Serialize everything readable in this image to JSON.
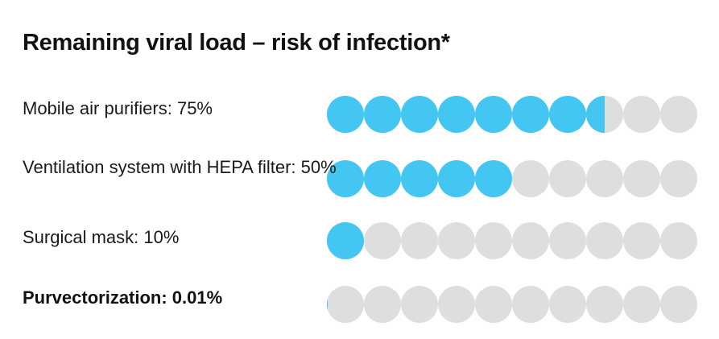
{
  "header": {
    "title": "Remaining viral load – risk of infection*"
  },
  "colors": {
    "filled": "#43c6f1",
    "empty": "#dedede",
    "text": "#1a1a1a"
  },
  "chart_data": {
    "type": "bar",
    "title": "Remaining viral load – risk of infection*",
    "categories": [
      "Mobile air purifiers: 75%",
      "Ventilation system with HEPA filter: 50%",
      "Surgical mask: 10%",
      "Purvectorization: 0.01%"
    ],
    "values": [
      75,
      50,
      10,
      0.01
    ],
    "unit": "%",
    "ylim": [
      0,
      100
    ],
    "dots_per_row": 10,
    "grid": false
  }
}
